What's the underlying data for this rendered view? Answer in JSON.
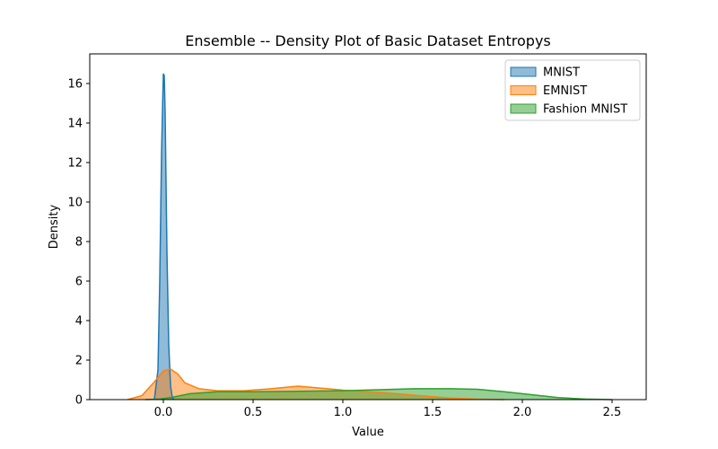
{
  "chart_data": {
    "type": "area",
    "title": "Ensemble -- Density Plot of Basic Dataset Entropys",
    "xlabel": "Value",
    "ylabel": "Density",
    "xlim": [
      -0.41,
      2.69
    ],
    "ylim": [
      0,
      17.5
    ],
    "xticks": [
      0.0,
      0.5,
      1.0,
      1.5,
      2.0,
      2.5
    ],
    "xtick_labels": [
      "0.0",
      "0.5",
      "1.0",
      "1.5",
      "2.0",
      "2.5"
    ],
    "yticks": [
      0,
      2,
      4,
      6,
      8,
      10,
      12,
      14,
      16
    ],
    "ytick_labels": [
      "0",
      "2",
      "4",
      "6",
      "8",
      "10",
      "12",
      "14",
      "16"
    ],
    "grid": false,
    "legend": "top-right",
    "series": [
      {
        "name": "MNIST",
        "color": "#1f77b4",
        "x": [
          -0.05,
          -0.03,
          -0.02,
          -0.01,
          0.0,
          0.005,
          0.01,
          0.02,
          0.03,
          0.04,
          0.05,
          0.06
        ],
        "y": [
          0.0,
          1.5,
          6.0,
          12.5,
          16.5,
          16.4,
          14.5,
          7.5,
          2.8,
          0.7,
          0.1,
          0.0
        ]
      },
      {
        "name": "EMNIST",
        "color": "#ff7f0e",
        "x": [
          -0.2,
          -0.12,
          -0.05,
          0.0,
          0.04,
          0.08,
          0.12,
          0.2,
          0.3,
          0.45,
          0.6,
          0.75,
          0.85,
          1.0,
          1.15,
          1.3,
          1.45,
          1.6,
          1.75,
          1.9
        ],
        "y": [
          0.0,
          0.2,
          0.9,
          1.45,
          1.55,
          1.3,
          0.85,
          0.55,
          0.45,
          0.45,
          0.55,
          0.68,
          0.6,
          0.48,
          0.4,
          0.3,
          0.18,
          0.08,
          0.02,
          0.0
        ]
      },
      {
        "name": "Fashion MNIST",
        "color": "#2ca02c",
        "x": [
          -0.1,
          -0.02,
          0.05,
          0.15,
          0.3,
          0.5,
          0.75,
          1.0,
          1.2,
          1.4,
          1.6,
          1.75,
          1.9,
          2.05,
          2.2,
          2.35,
          2.5
        ],
        "y": [
          0.0,
          0.03,
          0.12,
          0.3,
          0.4,
          0.4,
          0.42,
          0.45,
          0.5,
          0.55,
          0.55,
          0.52,
          0.4,
          0.25,
          0.1,
          0.03,
          0.0
        ]
      }
    ]
  }
}
